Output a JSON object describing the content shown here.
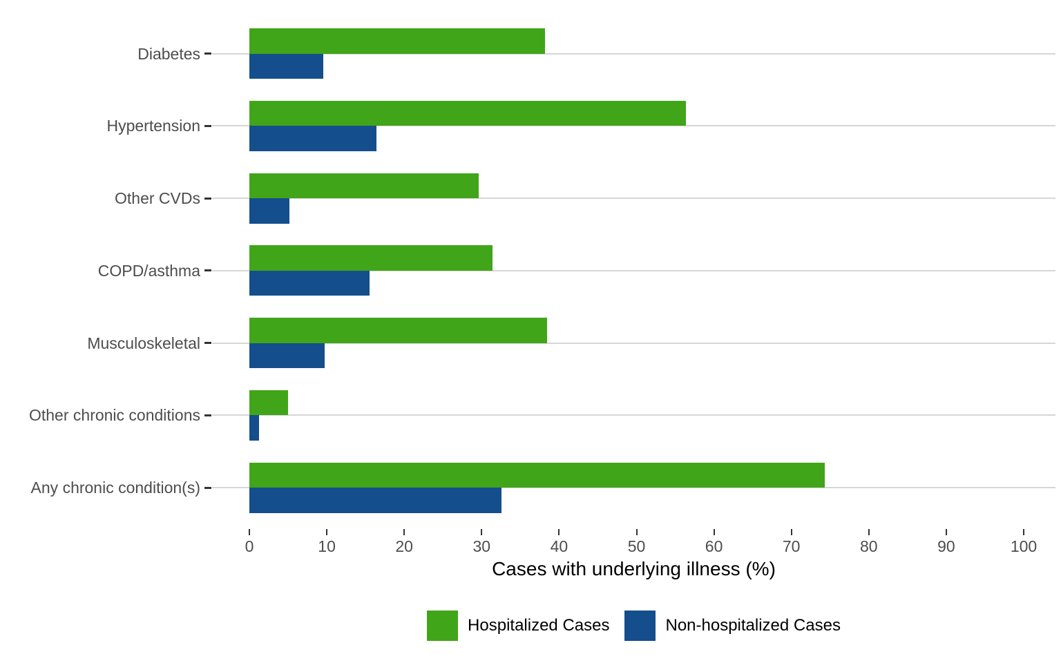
{
  "chart_data": {
    "type": "bar",
    "orientation": "horizontal",
    "title": "",
    "xlabel": "Cases with underlying illness (%)",
    "ylabel": "",
    "xlim": [
      0,
      100
    ],
    "x_ticks": [
      0,
      10,
      20,
      30,
      40,
      50,
      60,
      70,
      80,
      90,
      100
    ],
    "grid": "horizontal-major-only",
    "legend_position": "bottom",
    "categories": [
      "Diabetes",
      "Hypertension",
      "Other CVDs",
      "COPD/asthma",
      "Musculoskeletal",
      "Other chronic conditions",
      "Any chronic condition(s)"
    ],
    "series": [
      {
        "name": "Hospitalized Cases",
        "color": "#41a519",
        "values": [
          38.2,
          56.4,
          29.6,
          31.4,
          38.4,
          5.0,
          74.3
        ]
      },
      {
        "name": "Non-hospitalized Cases",
        "color": "#154e8c",
        "values": [
          9.5,
          16.4,
          5.2,
          15.5,
          9.7,
          1.2,
          32.6
        ]
      }
    ]
  },
  "legend": {
    "items": [
      {
        "label": "Hospitalized Cases",
        "color": "#41a519"
      },
      {
        "label": "Non-hospitalized Cases",
        "color": "#154e8c"
      }
    ]
  },
  "colors": {
    "hospitalized": "#41a519",
    "non_hospitalized": "#154e8c",
    "gridline": "#d6d6d6",
    "axis_text": "#4d4d4d",
    "tick_mark": "#333333",
    "background": "#ffffff"
  }
}
